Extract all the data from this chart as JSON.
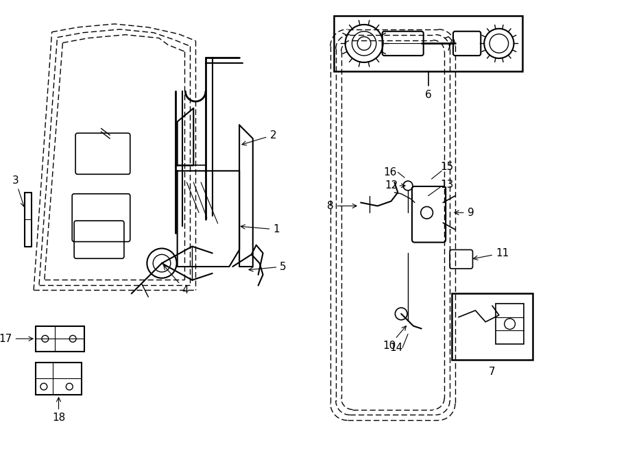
{
  "bg_color": "#ffffff",
  "line_color": "#000000",
  "figsize": [
    9.0,
    6.61
  ],
  "dpi": 100,
  "lw_dash": 1.0,
  "lw_solid": 1.3,
  "dash_pattern": [
    6,
    3
  ]
}
